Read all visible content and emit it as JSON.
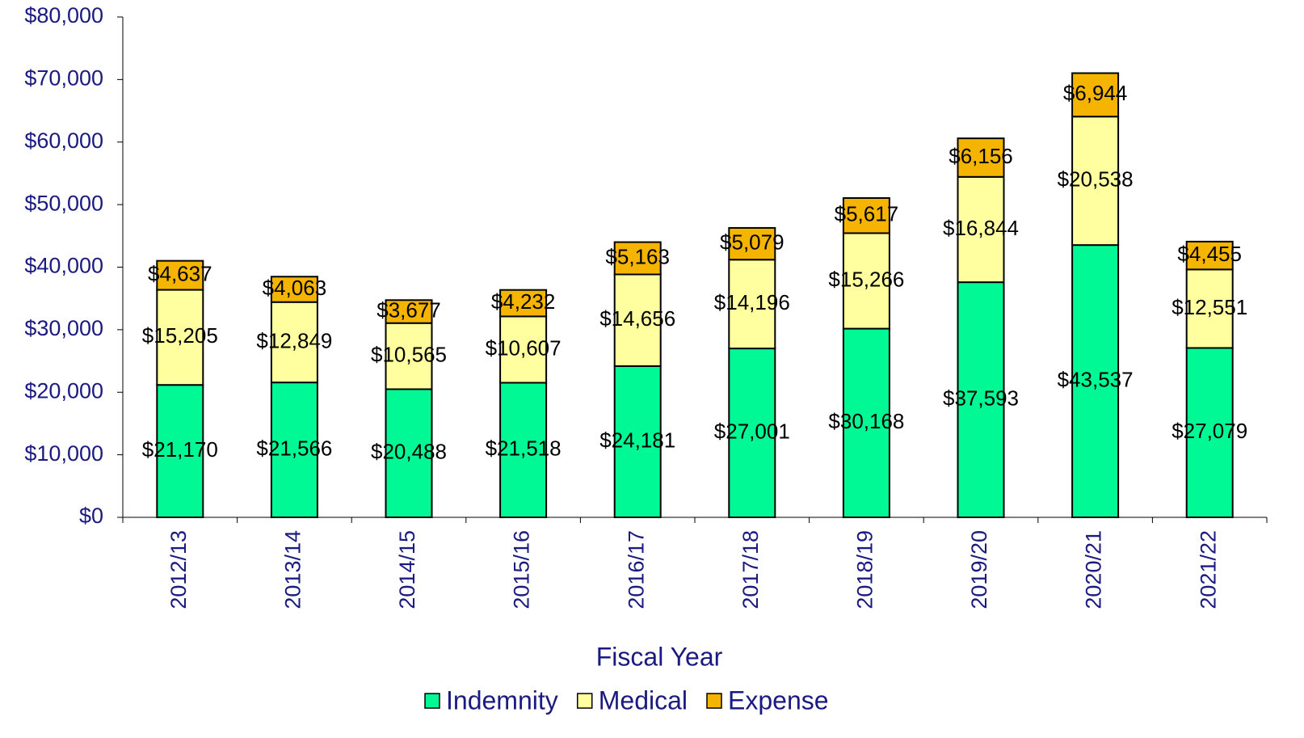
{
  "chart_data": {
    "type": "stacked_bar",
    "x_label": "Fiscal Year",
    "categories": [
      "2012/13",
      "2013/14",
      "2014/15",
      "2015/16",
      "2016/17",
      "2017/18",
      "2018/19",
      "2019/20",
      "2020/21",
      "2021/22"
    ],
    "series": [
      {
        "name": "Indemnity",
        "color": "#00f994",
        "values": [
          21170,
          21566,
          20488,
          21518,
          24181,
          27001,
          30168,
          37593,
          43537,
          27079
        ],
        "value_labels": [
          "$21,170",
          "$21,566",
          "$20,488",
          "$21,518",
          "$24,181",
          "$27,001",
          "$30,168",
          "$37,593",
          "$43,537",
          "$27,079"
        ]
      },
      {
        "name": "Medical",
        "color": "#ffffa0",
        "values": [
          15205,
          12849,
          10565,
          10607,
          14656,
          14196,
          15266,
          16844,
          20538,
          12551
        ],
        "value_labels": [
          "$15,205",
          "$12,849",
          "$10,565",
          "$10,607",
          "$14,656",
          "$14,196",
          "$15,266",
          "$16,844",
          "$20,538",
          "$12,551"
        ]
      },
      {
        "name": "Expense",
        "color": "#f5b400",
        "values": [
          4637,
          4063,
          3677,
          4232,
          5163,
          5079,
          5617,
          6156,
          6944,
          4455
        ],
        "value_labels": [
          "$4,637",
          "$4,063",
          "$3,677",
          "$4,232",
          "$5,163",
          "$5,079",
          "$5,617",
          "$6,156",
          "$6,944",
          "$4,455"
        ]
      }
    ],
    "ylim": [
      0,
      80000
    ],
    "yticks": [
      {
        "value": 0,
        "label": "$0"
      },
      {
        "value": 10000,
        "label": "$10,000"
      },
      {
        "value": 20000,
        "label": "$20,000"
      },
      {
        "value": 30000,
        "label": "$30,000"
      },
      {
        "value": 40000,
        "label": "$40,000"
      },
      {
        "value": 50000,
        "label": "$50,000"
      },
      {
        "value": 60000,
        "label": "$60,000"
      },
      {
        "value": 70000,
        "label": "$70,000"
      },
      {
        "value": 80000,
        "label": "$80,000"
      }
    ],
    "legend": "bottom"
  }
}
